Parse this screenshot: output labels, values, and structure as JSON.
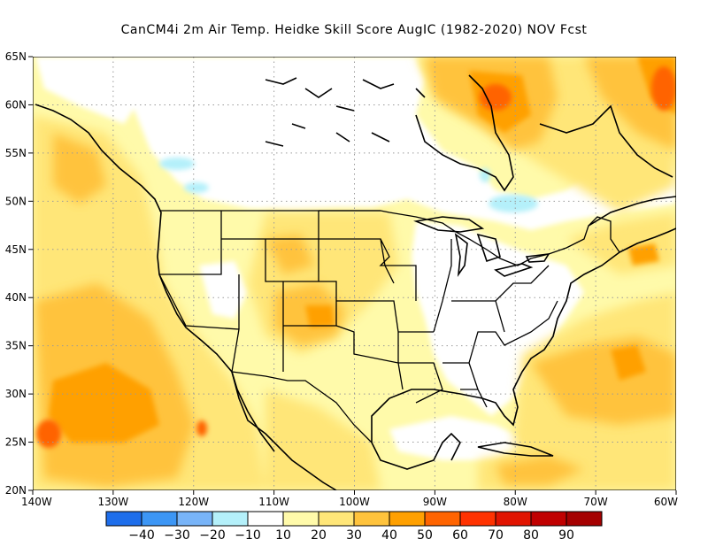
{
  "title": "CanCM4i  2m Air Temp. Heidke Skill Score AugIC (1982-2020) NOV Fcst",
  "map": {
    "lon_range": [
      -140,
      -60
    ],
    "lat_range": [
      20,
      65
    ],
    "lon_ticks": [
      {
        "value": -140,
        "label": "140W"
      },
      {
        "value": -130,
        "label": "130W"
      },
      {
        "value": -120,
        "label": "120W"
      },
      {
        "value": -110,
        "label": "110W"
      },
      {
        "value": -100,
        "label": "100W"
      },
      {
        "value": -90,
        "label": "90W"
      },
      {
        "value": -80,
        "label": "80W"
      },
      {
        "value": -70,
        "label": "70W"
      },
      {
        "value": -60,
        "label": "60W"
      }
    ],
    "lat_ticks": [
      {
        "value": 20,
        "label": "20N"
      },
      {
        "value": 25,
        "label": "25N"
      },
      {
        "value": 30,
        "label": "30N"
      },
      {
        "value": 35,
        "label": "35N"
      },
      {
        "value": 40,
        "label": "40N"
      },
      {
        "value": 45,
        "label": "45N"
      },
      {
        "value": 50,
        "label": "50N"
      },
      {
        "value": 55,
        "label": "55N"
      },
      {
        "value": 60,
        "label": "60N"
      },
      {
        "value": 65,
        "label": "65N"
      }
    ],
    "grid": "dotted",
    "colorbar": {
      "colors": [
        "#1e6eeb",
        "#3c96f5",
        "#78b4f8",
        "#b4f0fa",
        "#ffffff",
        "#fffaaa",
        "#ffe678",
        "#ffc33c",
        "#ffa000",
        "#ff6400",
        "#ff3200",
        "#e11400",
        "#c00000",
        "#a50000"
      ],
      "labels": [
        "-40",
        "-30",
        "-20",
        "-10",
        "10",
        "20",
        "30",
        "40",
        "50",
        "60",
        "70",
        "80",
        "90"
      ]
    }
  }
}
